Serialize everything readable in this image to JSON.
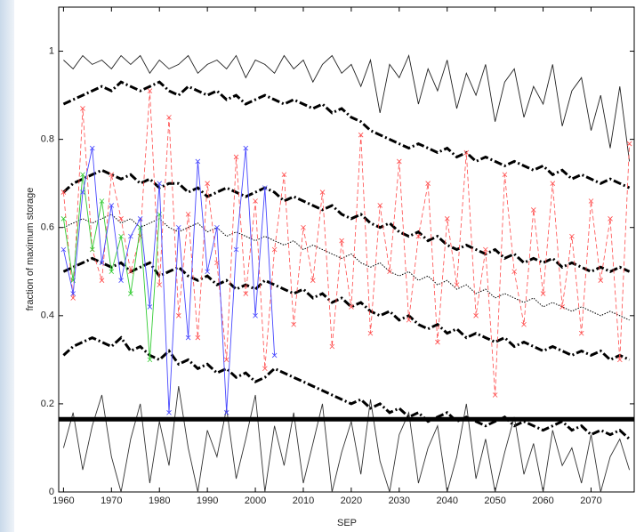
{
  "chart_data": {
    "type": "line",
    "x_label": "SEP",
    "y_label": "fraction of maximum storage",
    "xlim": [
      1959,
      2079
    ],
    "ylim": [
      0,
      1.1
    ],
    "xticks": [
      1960,
      1970,
      1980,
      1990,
      2000,
      2010,
      2020,
      2030,
      2040,
      2050,
      2060,
      2070
    ],
    "yticks": [
      0,
      0.2,
      0.4,
      0.6,
      0.8,
      1
    ],
    "x": [
      1960,
      1962,
      1964,
      1966,
      1968,
      1970,
      1972,
      1974,
      1976,
      1978,
      1980,
      1982,
      1984,
      1986,
      1988,
      1990,
      1992,
      1994,
      1996,
      1998,
      2000,
      2002,
      2004,
      2006,
      2008,
      2010,
      2012,
      2014,
      2016,
      2018,
      2020,
      2022,
      2024,
      2026,
      2028,
      2030,
      2032,
      2034,
      2036,
      2038,
      2040,
      2042,
      2044,
      2046,
      2048,
      2050,
      2052,
      2054,
      2056,
      2058,
      2060,
      2062,
      2064,
      2066,
      2068,
      2070,
      2072,
      2074,
      2076,
      2078
    ],
    "hline": {
      "value": 0.165,
      "color": "#000000"
    },
    "series": [
      {
        "color": "#222222",
        "style": "solid",
        "values": [
          0.98,
          0.96,
          0.99,
          0.97,
          0.98,
          0.96,
          0.99,
          0.97,
          0.99,
          0.95,
          0.98,
          0.96,
          0.97,
          0.99,
          0.95,
          0.97,
          0.98,
          0.96,
          0.99,
          0.94,
          0.98,
          0.97,
          0.95,
          0.99,
          0.96,
          0.98,
          0.93,
          0.97,
          0.99,
          0.95,
          0.97,
          0.92,
          0.98,
          0.86,
          0.97,
          0.94,
          0.99,
          0.88,
          0.96,
          0.91,
          0.98,
          0.87,
          0.95,
          0.9,
          0.97,
          0.84,
          0.93,
          0.96,
          0.85,
          0.92,
          0.88,
          0.97,
          0.83,
          0.91,
          0.94,
          0.82,
          0.9,
          0.78,
          0.92,
          0.75
        ]
      },
      {
        "color": "#000000",
        "style": "dashdot",
        "values": [
          0.88,
          0.89,
          0.9,
          0.91,
          0.92,
          0.91,
          0.93,
          0.92,
          0.91,
          0.92,
          0.93,
          0.91,
          0.9,
          0.92,
          0.91,
          0.9,
          0.91,
          0.89,
          0.9,
          0.88,
          0.89,
          0.9,
          0.89,
          0.88,
          0.89,
          0.88,
          0.87,
          0.88,
          0.86,
          0.87,
          0.85,
          0.84,
          0.82,
          0.81,
          0.8,
          0.79,
          0.78,
          0.79,
          0.78,
          0.77,
          0.78,
          0.76,
          0.77,
          0.75,
          0.76,
          0.75,
          0.74,
          0.75,
          0.74,
          0.73,
          0.74,
          0.72,
          0.73,
          0.71,
          0.72,
          0.71,
          0.7,
          0.71,
          0.7,
          0.69
        ]
      },
      {
        "color": "#000000",
        "style": "dashdot",
        "values": [
          0.68,
          0.7,
          0.71,
          0.72,
          0.73,
          0.72,
          0.71,
          0.72,
          0.7,
          0.71,
          0.69,
          0.7,
          0.7,
          0.68,
          0.69,
          0.67,
          0.68,
          0.69,
          0.68,
          0.67,
          0.68,
          0.69,
          0.68,
          0.66,
          0.67,
          0.66,
          0.65,
          0.64,
          0.65,
          0.63,
          0.62,
          0.63,
          0.61,
          0.6,
          0.61,
          0.59,
          0.58,
          0.59,
          0.57,
          0.58,
          0.56,
          0.55,
          0.56,
          0.55,
          0.54,
          0.55,
          0.53,
          0.54,
          0.52,
          0.53,
          0.52,
          0.53,
          0.51,
          0.52,
          0.51,
          0.5,
          0.51,
          0.5,
          0.51,
          0.5
        ]
      },
      {
        "color": "#000000",
        "style": "dotted",
        "values": [
          0.6,
          0.61,
          0.62,
          0.61,
          0.62,
          0.63,
          0.61,
          0.62,
          0.6,
          0.61,
          0.62,
          0.6,
          0.59,
          0.6,
          0.61,
          0.59,
          0.6,
          0.58,
          0.59,
          0.58,
          0.57,
          0.58,
          0.57,
          0.56,
          0.57,
          0.55,
          0.56,
          0.55,
          0.54,
          0.53,
          0.54,
          0.52,
          0.51,
          0.52,
          0.5,
          0.49,
          0.5,
          0.48,
          0.49,
          0.47,
          0.48,
          0.46,
          0.47,
          0.45,
          0.46,
          0.44,
          0.45,
          0.44,
          0.43,
          0.44,
          0.42,
          0.43,
          0.42,
          0.41,
          0.42,
          0.41,
          0.4,
          0.41,
          0.4,
          0.39
        ]
      },
      {
        "color": "#000000",
        "style": "dashdot",
        "values": [
          0.5,
          0.51,
          0.52,
          0.53,
          0.52,
          0.51,
          0.52,
          0.5,
          0.51,
          0.52,
          0.49,
          0.5,
          0.51,
          0.49,
          0.48,
          0.49,
          0.47,
          0.48,
          0.46,
          0.47,
          0.46,
          0.48,
          0.47,
          0.46,
          0.45,
          0.46,
          0.44,
          0.45,
          0.43,
          0.44,
          0.42,
          0.43,
          0.41,
          0.4,
          0.41,
          0.39,
          0.4,
          0.38,
          0.37,
          0.38,
          0.36,
          0.37,
          0.35,
          0.36,
          0.35,
          0.34,
          0.35,
          0.33,
          0.34,
          0.33,
          0.32,
          0.33,
          0.32,
          0.31,
          0.32,
          0.31,
          0.32,
          0.3,
          0.31,
          0.3
        ]
      },
      {
        "color": "#000000",
        "style": "dashdot",
        "values": [
          0.31,
          0.33,
          0.34,
          0.35,
          0.34,
          0.33,
          0.35,
          0.32,
          0.33,
          0.31,
          0.3,
          0.32,
          0.29,
          0.3,
          0.28,
          0.29,
          0.27,
          0.28,
          0.26,
          0.27,
          0.25,
          0.26,
          0.28,
          0.27,
          0.26,
          0.25,
          0.24,
          0.23,
          0.22,
          0.21,
          0.2,
          0.21,
          0.19,
          0.2,
          0.18,
          0.19,
          0.17,
          0.18,
          0.16,
          0.17,
          0.18,
          0.16,
          0.17,
          0.16,
          0.15,
          0.16,
          0.17,
          0.15,
          0.16,
          0.15,
          0.14,
          0.15,
          0.16,
          0.14,
          0.15,
          0.13,
          0.14,
          0.13,
          0.14,
          0.12
        ]
      },
      {
        "color": "#333333",
        "style": "solid",
        "values": [
          0.1,
          0.18,
          0.05,
          0.15,
          0.22,
          0.08,
          0.0,
          0.12,
          0.2,
          0.02,
          0.16,
          0.06,
          0.24,
          0.1,
          0.0,
          0.14,
          0.08,
          0.19,
          0.03,
          0.12,
          0.22,
          0.0,
          0.15,
          0.06,
          0.18,
          0.02,
          0.11,
          0.2,
          0.0,
          0.09,
          0.16,
          0.04,
          0.21,
          0.07,
          0.0,
          0.13,
          0.18,
          0.02,
          0.1,
          0.15,
          0.0,
          0.08,
          0.2,
          0.03,
          0.12,
          0.0,
          0.09,
          0.17,
          0.04,
          0.11,
          0.0,
          0.14,
          0.06,
          0.1,
          0.02,
          0.13,
          0.0,
          0.08,
          0.12,
          0.05
        ]
      },
      {
        "color": "#ff4a4a",
        "style": "dashed",
        "marker": "x",
        "values": [
          0.68,
          0.44,
          0.87,
          0.55,
          0.48,
          0.72,
          0.62,
          0.5,
          0.58,
          0.91,
          0.47,
          0.85,
          0.4,
          0.63,
          0.35,
          0.7,
          0.52,
          0.3,
          0.76,
          0.45,
          0.66,
          0.28,
          0.55,
          0.72,
          0.38,
          0.6,
          0.48,
          0.68,
          0.33,
          0.57,
          0.42,
          0.81,
          0.36,
          0.65,
          0.5,
          0.75,
          0.39,
          0.58,
          0.7,
          0.34,
          0.62,
          0.47,
          0.77,
          0.4,
          0.55,
          0.22,
          0.72,
          0.5,
          0.38,
          0.64,
          0.45,
          0.7,
          0.42,
          0.58,
          0.36,
          0.66,
          0.48,
          0.62,
          0.3,
          0.79
        ]
      },
      {
        "color": "#33cc33",
        "style": "solid",
        "marker": "x",
        "values": [
          0.62,
          0.48,
          0.72,
          0.55,
          0.66,
          0.5,
          0.58,
          0.45,
          0.6,
          0.3,
          0.63,
          null,
          null,
          null,
          null,
          null,
          null,
          null,
          null,
          null,
          null,
          null,
          null,
          null,
          null,
          null,
          null,
          null,
          null,
          null,
          null,
          null,
          null,
          null,
          null,
          null,
          null,
          null,
          null,
          null,
          null,
          null,
          null,
          null,
          null,
          null,
          null,
          null,
          null,
          null,
          null,
          null,
          null,
          null,
          null,
          null,
          null,
          null,
          null,
          null
        ]
      },
      {
        "color": "#4848ff",
        "style": "solid",
        "marker": "x",
        "values": [
          0.55,
          0.45,
          0.68,
          0.78,
          0.52,
          0.65,
          0.48,
          0.58,
          0.62,
          0.42,
          0.7,
          0.18,
          0.6,
          0.35,
          0.75,
          0.5,
          0.6,
          0.18,
          0.55,
          0.78,
          0.4,
          0.69,
          0.31,
          null,
          null,
          null,
          null,
          null,
          null,
          null,
          null,
          null,
          null,
          null,
          null,
          null,
          null,
          null,
          null,
          null,
          null,
          null,
          null,
          null,
          null,
          null,
          null,
          null,
          null,
          null,
          null,
          null,
          null,
          null,
          null,
          null,
          null,
          null,
          null,
          null
        ]
      }
    ]
  }
}
